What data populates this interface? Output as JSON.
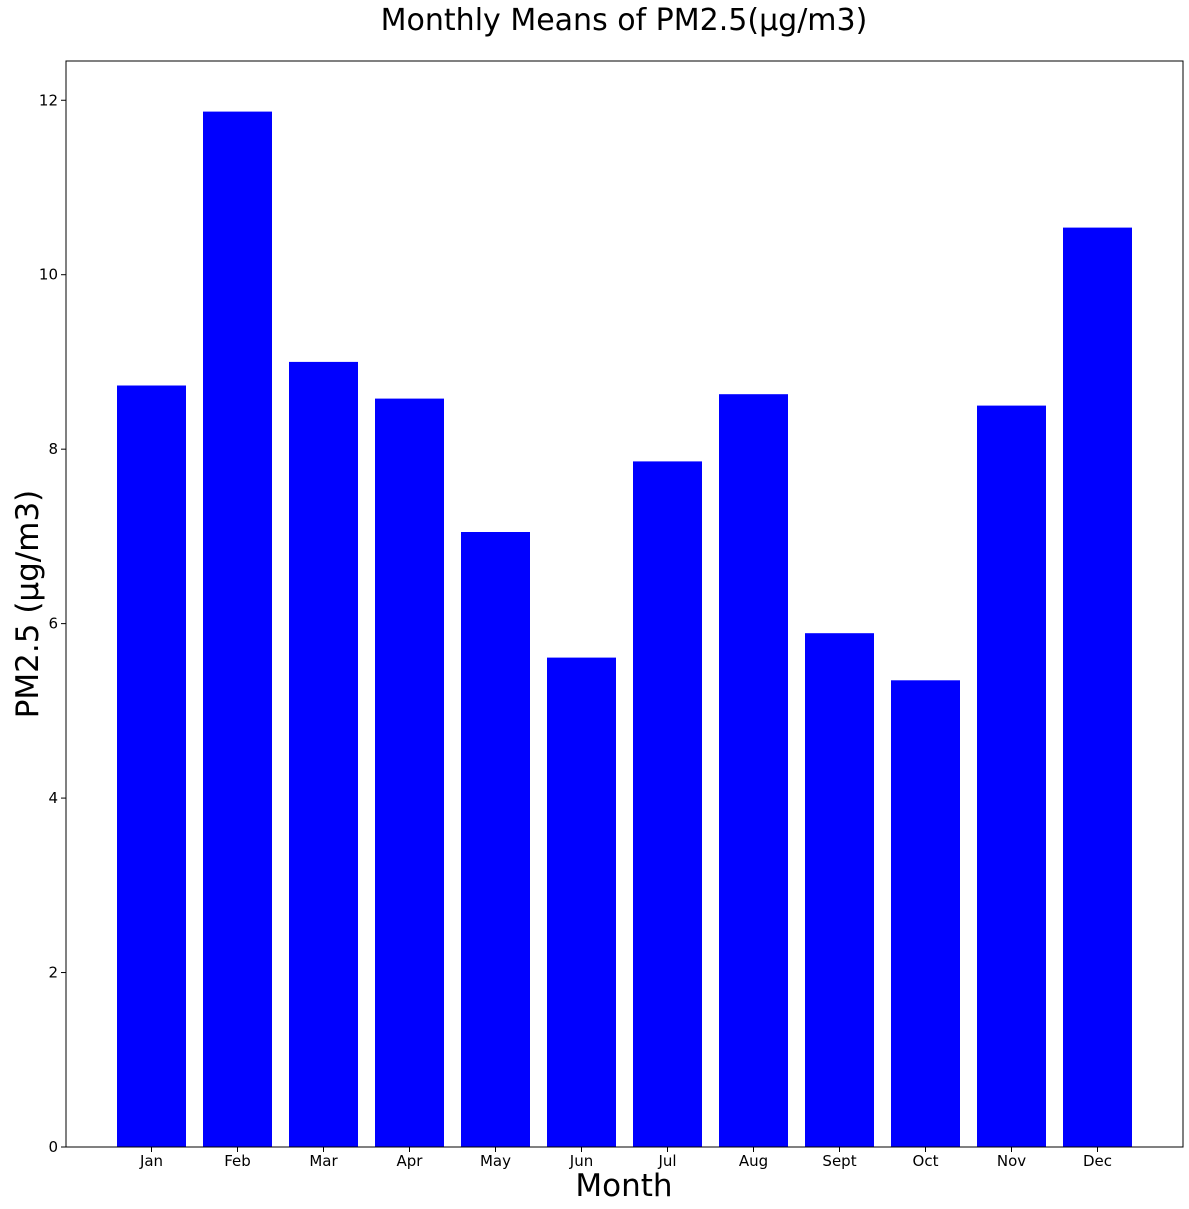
{
  "chart_data": {
    "type": "bar",
    "title": "Monthly Means of PM2.5(µg/m3)",
    "xlabel": "Month",
    "ylabel": "PM2.5 (µg/m3)",
    "categories": [
      "Jan",
      "Feb",
      "Mar",
      "Apr",
      "May",
      "Jun",
      "Jul",
      "Aug",
      "Sept",
      "Oct",
      "Nov",
      "Dec"
    ],
    "values": [
      8.73,
      11.87,
      9.0,
      8.58,
      7.05,
      5.61,
      7.86,
      8.63,
      5.89,
      5.35,
      8.5,
      10.54
    ],
    "ylim": [
      0,
      12.45
    ],
    "yticks": [
      0,
      2,
      4,
      6,
      8,
      10,
      12
    ],
    "bar_color": "#0000ff",
    "grid": false,
    "legend": "none"
  }
}
